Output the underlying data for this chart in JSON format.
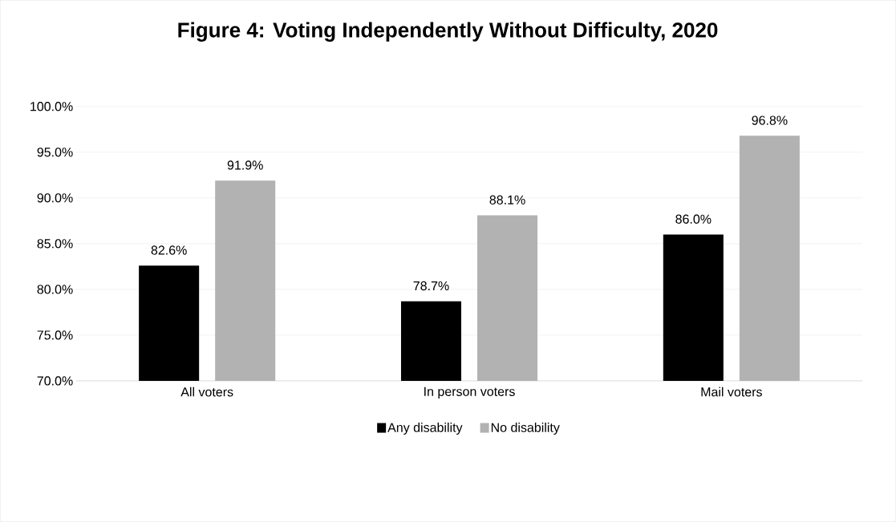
{
  "chart_data": {
    "type": "bar",
    "title": "Figure 4:  Voting Independently Without Difficulty, 2020",
    "categories": [
      "All voters",
      "In person voters",
      "Mail voters"
    ],
    "series": [
      {
        "name": "Any disability",
        "color": "#000000",
        "values": [
          82.6,
          78.7,
          86.0
        ],
        "value_labels": [
          "82.6%",
          "78.7%",
          "86.0%"
        ]
      },
      {
        "name": "No disability",
        "color": "#b2b2b2",
        "values": [
          91.9,
          88.1,
          96.8
        ],
        "value_labels": [
          "91.9%",
          "88.1%",
          "96.8%"
        ]
      }
    ],
    "ylim": [
      70,
      100
    ],
    "yticks": [
      {
        "value": 70,
        "label": "70.0%"
      },
      {
        "value": 75,
        "label": "75.0%"
      },
      {
        "value": 80,
        "label": "80.0%"
      },
      {
        "value": 85,
        "label": "85.0%"
      },
      {
        "value": 90,
        "label": "90.0%"
      },
      {
        "value": 95,
        "label": "95.0%"
      },
      {
        "value": 100,
        "label": "100.0%"
      }
    ],
    "grid": "y",
    "legend": "bottom"
  }
}
